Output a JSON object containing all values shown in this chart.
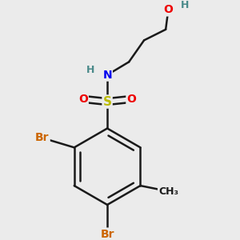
{
  "bg_color": "#ebebeb",
  "bond_color": "#1a1a1a",
  "bond_width": 1.8,
  "atom_colors": {
    "C": "#1a1a1a",
    "H": "#4a8a8a",
    "N": "#0000ee",
    "O": "#ee0000",
    "S": "#bbbb00",
    "Br": "#cc6600"
  },
  "font_size": 10,
  "fig_size": [
    3.0,
    3.0
  ],
  "dpi": 100
}
